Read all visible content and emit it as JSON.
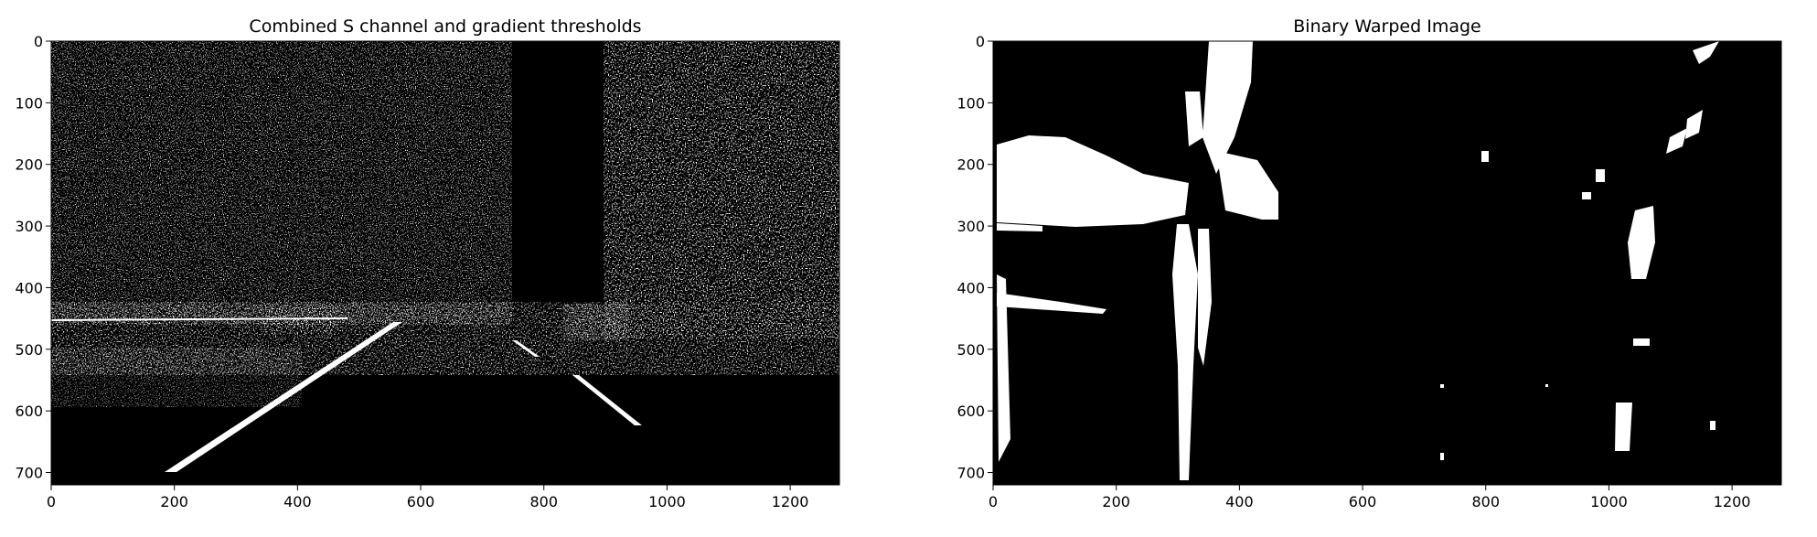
{
  "figure": {
    "background": "#ffffff",
    "image_background": "#000000",
    "pixel_color": "#ffffff"
  },
  "chart_data": [
    {
      "type": "image",
      "title": "Combined S channel and gradient thresholds",
      "xlabel": "",
      "ylabel": "",
      "xlim": [
        0,
        1280
      ],
      "ylim": [
        720,
        0
      ],
      "xticks": [
        0,
        200,
        400,
        600,
        800,
        1000,
        1200
      ],
      "yticks": [
        0,
        100,
        200,
        300,
        400,
        500,
        600,
        700
      ],
      "grid": false,
      "legend": "none",
      "content": "binary thresholded road image: dense white edge pixels in trees on both sides, car near x 900 y 450, left lane line from (200,700) to (560,480), right dashed lane line near (850,560)-(1000,680)"
    },
    {
      "type": "image",
      "title": "Binary Warped Image",
      "xlabel": "",
      "ylabel": "",
      "xlim": [
        0,
        1280
      ],
      "ylim": [
        720,
        0
      ],
      "xticks": [
        0,
        200,
        400,
        600,
        800,
        1000,
        1200
      ],
      "yticks": [
        0,
        100,
        200,
        300,
        400,
        500,
        600,
        700
      ],
      "grid": false,
      "legend": "none",
      "content": "bird's-eye warped binary image: vertical left lane line near x 300-350, right lane segments near x 1000-1100, bright blobs top-left and around x 350-450 y 200-290"
    }
  ]
}
